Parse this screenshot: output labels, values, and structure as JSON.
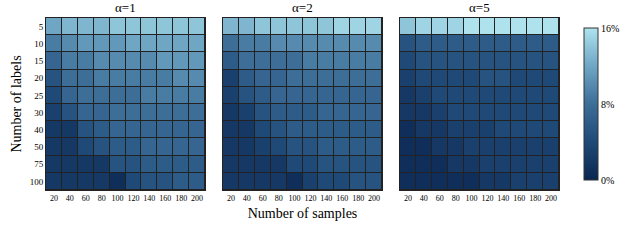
{
  "chart_data": {
    "type": "heatmap",
    "x_label": "Number of samples",
    "y_label": "Number of labels",
    "x": [
      20,
      40,
      60,
      80,
      100,
      120,
      140,
      160,
      180,
      200
    ],
    "y": [
      5,
      10,
      15,
      20,
      25,
      30,
      40,
      50,
      75,
      100
    ],
    "colorbar": {
      "range": [
        0,
        16
      ],
      "ticks": [
        {
          "value": 0,
          "label": "0%"
        },
        {
          "value": 8,
          "label": "8%"
        },
        {
          "value": 16,
          "label": "16%"
        }
      ]
    },
    "panels": [
      {
        "title": "α=1",
        "cells": [
          [
            12,
            13,
            13,
            13,
            14,
            14,
            14,
            14,
            14,
            14
          ],
          [
            9,
            10,
            11,
            11,
            11,
            12,
            12,
            12,
            12,
            12
          ],
          [
            7,
            9,
            9,
            10,
            10,
            10,
            10,
            11,
            11,
            11
          ],
          [
            5,
            8,
            8,
            9,
            9,
            9,
            9,
            9,
            10,
            10
          ],
          [
            4,
            7,
            8,
            8,
            8,
            8,
            9,
            9,
            9,
            9
          ],
          [
            3,
            5,
            7,
            7,
            8,
            8,
            8,
            8,
            8,
            8
          ],
          [
            2,
            2,
            5,
            6,
            7,
            7,
            7,
            7,
            7,
            7
          ],
          [
            2,
            2,
            4,
            5,
            6,
            6,
            7,
            7,
            7,
            7
          ],
          [
            2,
            2,
            2,
            2,
            5,
            5,
            6,
            6,
            6,
            6
          ],
          [
            2,
            2,
            2,
            2,
            1,
            4,
            5,
            5,
            6,
            6
          ]
        ]
      },
      {
        "title": "α=2",
        "cells": [
          [
            13,
            13,
            14,
            14,
            14,
            14,
            14,
            15,
            15,
            15
          ],
          [
            8,
            9,
            9,
            10,
            10,
            10,
            10,
            10,
            10,
            10
          ],
          [
            6,
            8,
            8,
            8,
            8,
            9,
            9,
            9,
            9,
            9
          ],
          [
            3,
            6,
            7,
            7,
            8,
            8,
            8,
            8,
            8,
            8
          ],
          [
            3,
            5,
            6,
            7,
            7,
            7,
            7,
            7,
            7,
            7
          ],
          [
            2,
            3,
            5,
            6,
            6,
            6,
            7,
            7,
            7,
            7
          ],
          [
            2,
            2,
            4,
            5,
            6,
            6,
            6,
            6,
            6,
            6
          ],
          [
            2,
            2,
            3,
            4,
            5,
            5,
            6,
            6,
            6,
            6
          ],
          [
            2,
            2,
            2,
            2,
            4,
            4,
            5,
            5,
            5,
            5
          ],
          [
            2,
            2,
            2,
            2,
            1,
            3,
            4,
            4,
            5,
            5
          ]
        ]
      },
      {
        "title": "α=5",
        "cells": [
          [
            14,
            15,
            15,
            15,
            16,
            16,
            16,
            16,
            16,
            16
          ],
          [
            5,
            6,
            6,
            6,
            6,
            6,
            6,
            6,
            6,
            6
          ],
          [
            4,
            5,
            5,
            5,
            5,
            5,
            5,
            5,
            5,
            5
          ],
          [
            3,
            4,
            4,
            4,
            4,
            5,
            5,
            4,
            4,
            4
          ],
          [
            2,
            3,
            4,
            4,
            4,
            4,
            4,
            4,
            4,
            4
          ],
          [
            2,
            2,
            3,
            4,
            4,
            4,
            4,
            4,
            4,
            4
          ],
          [
            1,
            2,
            2,
            3,
            3,
            3,
            4,
            4,
            4,
            4
          ],
          [
            1,
            1,
            2,
            2,
            3,
            3,
            3,
            3,
            3,
            3
          ],
          [
            1,
            1,
            1,
            2,
            2,
            3,
            3,
            3,
            3,
            3
          ],
          [
            1,
            1,
            1,
            1,
            1,
            2,
            2,
            3,
            3,
            3
          ]
        ]
      }
    ]
  }
}
